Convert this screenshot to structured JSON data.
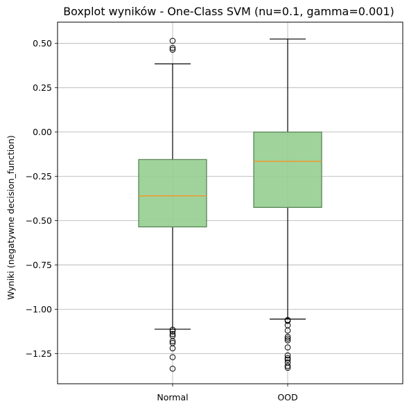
{
  "chart_data": {
    "type": "boxplot",
    "title": "Boxplot wyników - One-Class SVM (nu=0.1, gamma=0.001)",
    "xlabel": "",
    "ylabel": "Wyniki (negatywne decision_function)",
    "ylim": [
      -1.42,
      0.62
    ],
    "yticks": [
      0.5,
      0.25,
      0.0,
      -0.25,
      -0.5,
      -0.75,
      -1.0,
      -1.25
    ],
    "ytick_labels": [
      "0.50",
      "0.25",
      "0.00",
      "−0.25",
      "−0.50",
      "−0.75",
      "−1.00",
      "−1.25"
    ],
    "grid": true,
    "categories": [
      "Normal",
      "OOD"
    ],
    "boxes": [
      {
        "label": "Normal",
        "whisker_low": -1.112,
        "q1": -0.535,
        "median": -0.36,
        "q3": -0.155,
        "whisker_high": 0.385,
        "outliers": [
          0.515,
          0.475,
          0.465,
          -1.115,
          -1.125,
          -1.14,
          -1.15,
          -1.18,
          -1.19,
          -1.22,
          -1.27,
          -1.335
        ]
      },
      {
        "label": "OOD",
        "whisker_low": -1.055,
        "q1": -0.425,
        "median": -0.165,
        "q3": 0.0,
        "whisker_high": 0.525,
        "outliers": [
          -1.06,
          -1.065,
          -1.09,
          -1.12,
          -1.155,
          -1.165,
          -1.175,
          -1.215,
          -1.26,
          -1.275,
          -1.285,
          -1.3,
          -1.32,
          -1.33
        ]
      }
    ],
    "colors": {
      "box_fill": "#98cf92",
      "box_edge": "#4e7f4d",
      "median": "#ff8c1a",
      "grid": "#b0b0b0",
      "whisker": "#000000"
    }
  }
}
